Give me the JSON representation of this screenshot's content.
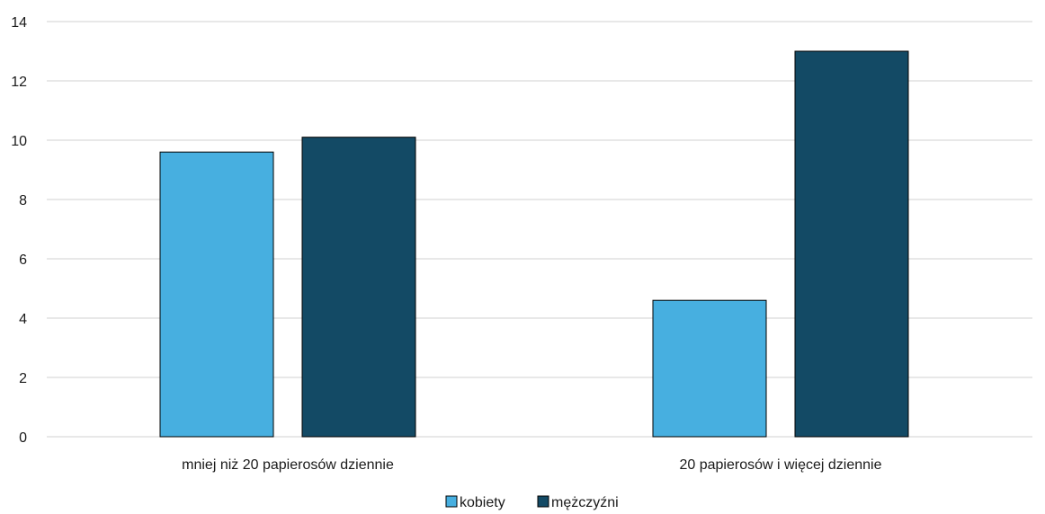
{
  "chart_data": {
    "type": "bar",
    "title": "",
    "xlabel": "",
    "ylabel": "",
    "categories": [
      "mniej niż 20 papierosów dziennie",
      "20 papierosów i więcej dziennie"
    ],
    "series": [
      {
        "name": "kobiety",
        "values": [
          9.6,
          4.6
        ],
        "color": "#47afe0"
      },
      {
        "name": "mężczyźni",
        "values": [
          10.1,
          13.0
        ],
        "color": "#134a65"
      }
    ],
    "ylim": [
      0,
      14
    ],
    "yticks": [
      0,
      2,
      4,
      6,
      8,
      10,
      12,
      14
    ],
    "grid": true,
    "legend_position": "bottom"
  },
  "colors": {
    "gridline": "#d9d9d9",
    "bar_outline": "#000000"
  }
}
